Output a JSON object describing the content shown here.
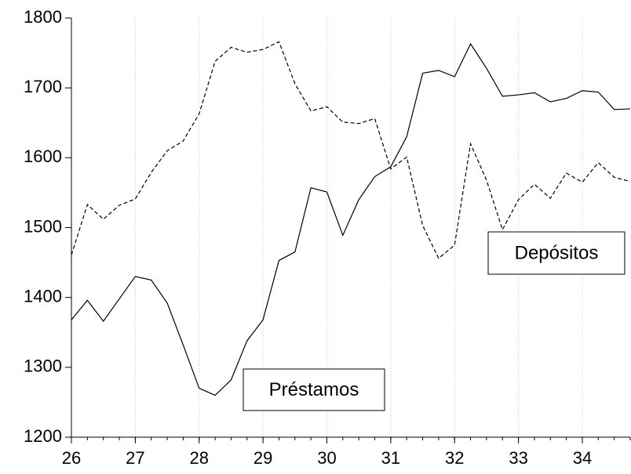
{
  "chart_data": {
    "type": "line",
    "x": [
      26,
      26.25,
      26.5,
      26.75,
      27,
      27.25,
      27.5,
      27.75,
      28,
      28.25,
      28.5,
      28.75,
      29,
      29.25,
      29.5,
      29.75,
      30,
      30.25,
      30.5,
      30.75,
      31,
      31.25,
      31.5,
      31.75,
      32,
      32.25,
      32.5,
      32.75,
      33,
      33.25,
      33.5,
      33.75,
      34,
      34.25,
      34.5,
      34.75
    ],
    "series": [
      {
        "name": "Préstamos",
        "color": "#000000",
        "dash": false,
        "values": [
          1368,
          1396,
          1366,
          1398,
          1430,
          1425,
          1392,
          1332,
          1270,
          1260,
          1282,
          1338,
          1368,
          1453,
          1465,
          1557,
          1551,
          1489,
          1540,
          1573,
          1587,
          1630,
          1721,
          1725,
          1716,
          1763,
          1728,
          1688,
          1690,
          1693,
          1680,
          1685,
          1696,
          1694,
          1669,
          1670
        ]
      },
      {
        "name": "Depósitos",
        "color": "#000000",
        "dash": true,
        "values": [
          1461,
          1533,
          1512,
          1532,
          1541,
          1579,
          1610,
          1624,
          1663,
          1738,
          1758,
          1751,
          1755,
          1766,
          1706,
          1667,
          1673,
          1651,
          1649,
          1656,
          1584,
          1601,
          1503,
          1456,
          1475,
          1620,
          1568,
          1497,
          1540,
          1562,
          1542,
          1578,
          1565,
          1593,
          1572,
          1566
        ]
      }
    ],
    "xlim": [
      26,
      34.75
    ],
    "xticks": [
      26,
      27,
      28,
      29,
      30,
      31,
      32,
      33,
      34
    ],
    "ylim": [
      1200,
      1800
    ],
    "yticks": [
      1200,
      1300,
      1400,
      1500,
      1600,
      1700,
      1800
    ],
    "grid": true
  }
}
